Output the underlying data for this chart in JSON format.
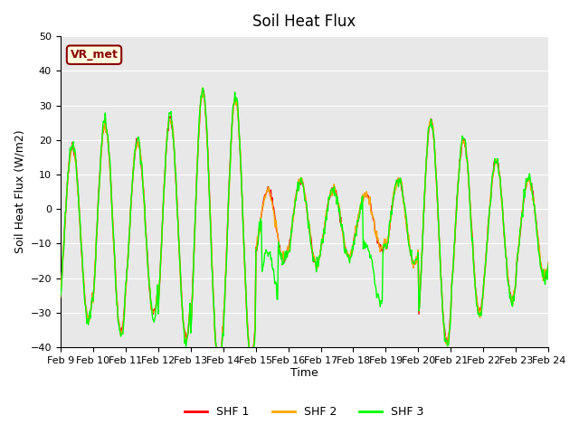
{
  "title": "Soil Heat Flux",
  "ylabel": "Soil Heat Flux (W/m2)",
  "xlabel": "Time",
  "ylim": [
    -40,
    50
  ],
  "series_colors": [
    "red",
    "orange",
    "lime"
  ],
  "series_labels": [
    "SHF 1",
    "SHF 2",
    "SHF 3"
  ],
  "annotation_text": "VR_met",
  "xtick_labels": [
    "Feb 9",
    "Feb 10",
    "Feb 11",
    "Feb 12",
    "Feb 13",
    "Feb 14",
    "Feb 15",
    "Feb 16",
    "Feb 17",
    "Feb 18",
    "Feb 19",
    "Feb 20",
    "Feb 21",
    "Feb 22",
    "Feb 23",
    "Feb 24"
  ],
  "bg_color": "#e8e8e8",
  "fig_bg_color": "#ffffff",
  "grid_color": "#ffffff",
  "linewidth": 1.0,
  "yticks": [
    -40,
    -30,
    -20,
    -10,
    0,
    10,
    20,
    30,
    40,
    50
  ]
}
